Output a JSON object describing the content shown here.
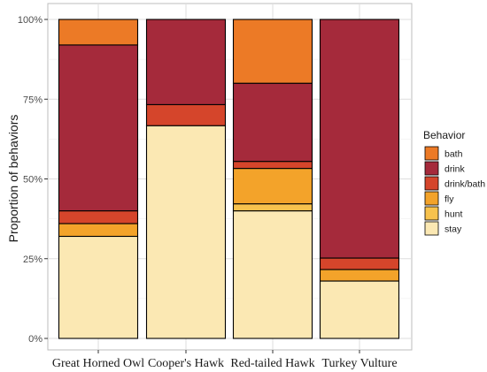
{
  "chart_data": {
    "type": "bar",
    "stacked": true,
    "title": "",
    "xlabel": "",
    "ylabel": "Proportion of behaviors",
    "ylim": [
      0,
      1
    ],
    "y_ticks": [
      "0%",
      "25%",
      "50%",
      "75%",
      "100%"
    ],
    "y_tick_values": [
      0,
      0.25,
      0.5,
      0.75,
      1.0
    ],
    "grid": true,
    "categories": [
      "Great Horned Owl",
      "Cooper's Hawk",
      "Red-tailed Hawk",
      "Turkey Vulture"
    ],
    "legend": {
      "title": "Behavior",
      "position": "right"
    },
    "series": [
      {
        "name": "stay",
        "color": "#fbe8b3",
        "values": [
          0.32,
          0.667,
          0.4,
          0.18
        ]
      },
      {
        "name": "hunt",
        "color": "#f7c24d",
        "values": [
          0.0,
          0.0,
          0.022,
          0.0
        ]
      },
      {
        "name": "fly",
        "color": "#f3a32a",
        "values": [
          0.04,
          0.0,
          0.111,
          0.036
        ]
      },
      {
        "name": "drink/bath",
        "color": "#d5452b",
        "values": [
          0.04,
          0.066,
          0.022,
          0.036
        ]
      },
      {
        "name": "drink",
        "color": "#a52a3b",
        "values": [
          0.52,
          0.267,
          0.245,
          0.748
        ]
      },
      {
        "name": "bath",
        "color": "#ec7a26",
        "values": [
          0.08,
          0.0,
          0.2,
          0.0
        ]
      }
    ],
    "legend_order": [
      "bath",
      "drink",
      "drink/bath",
      "fly",
      "hunt",
      "stay"
    ]
  }
}
